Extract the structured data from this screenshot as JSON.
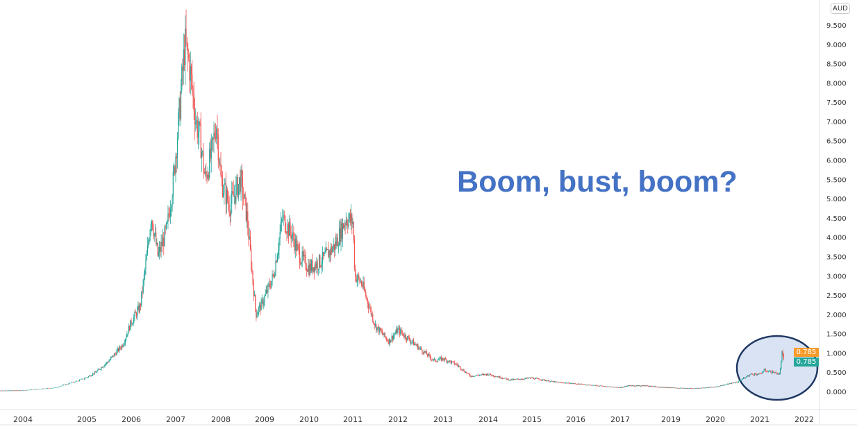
{
  "chart_data": {
    "type": "candlestick",
    "title": "",
    "annotation": "Boom, bust, boom?",
    "currency": "AUD",
    "y_ticks": [
      "0.000",
      "0.500",
      "1.000",
      "1.500",
      "2.000",
      "2.500",
      "3.000",
      "3.500",
      "4.000",
      "4.500",
      "5.000",
      "5.500",
      "6.000",
      "6.500",
      "7.000",
      "7.500",
      "8.000",
      "8.500",
      "9.000",
      "9.500"
    ],
    "ylim": [
      0,
      9.5
    ],
    "x_ticks": [
      "2004",
      "2005",
      "2006",
      "2007",
      "2008",
      "2009",
      "2010",
      "2011",
      "2012",
      "2013",
      "2014",
      "2015",
      "2016",
      "2017",
      "2019",
      "2020",
      "2021",
      "2022"
    ],
    "price_path": [
      [
        2003.0,
        0.02
      ],
      [
        2004.0,
        0.03
      ],
      [
        2004.5,
        0.1
      ],
      [
        2004.9,
        0.3
      ],
      [
        2005.2,
        0.5
      ],
      [
        2005.5,
        0.8
      ],
      [
        2005.8,
        1.2
      ],
      [
        2006.0,
        1.8
      ],
      [
        2006.2,
        2.2
      ],
      [
        2006.35,
        3.5
      ],
      [
        2006.45,
        4.6
      ],
      [
        2006.6,
        3.5
      ],
      [
        2006.8,
        4.2
      ],
      [
        2006.95,
        5.5
      ],
      [
        2007.1,
        7.5
      ],
      [
        2007.2,
        9.0
      ],
      [
        2007.3,
        8.5
      ],
      [
        2007.45,
        7.0
      ],
      [
        2007.55,
        6.5
      ],
      [
        2007.65,
        5.5
      ],
      [
        2007.8,
        6.2
      ],
      [
        2007.9,
        7.0
      ],
      [
        2008.0,
        5.5
      ],
      [
        2008.2,
        4.8
      ],
      [
        2008.45,
        5.5
      ],
      [
        2008.6,
        4.5
      ],
      [
        2008.8,
        2.0
      ],
      [
        2008.95,
        2.3
      ],
      [
        2009.2,
        3.0
      ],
      [
        2009.4,
        4.5
      ],
      [
        2009.6,
        4.1
      ],
      [
        2009.8,
        3.5
      ],
      [
        2010.0,
        3.2
      ],
      [
        2010.3,
        3.4
      ],
      [
        2010.6,
        3.8
      ],
      [
        2010.85,
        4.5
      ],
      [
        2011.0,
        4.4
      ],
      [
        2011.05,
        3.0
      ],
      [
        2011.2,
        2.8
      ],
      [
        2011.5,
        1.7
      ],
      [
        2011.8,
        1.3
      ],
      [
        2012.0,
        1.6
      ],
      [
        2012.2,
        1.4
      ],
      [
        2012.5,
        1.1
      ],
      [
        2012.8,
        0.8
      ],
      [
        2013.0,
        0.85
      ],
      [
        2013.3,
        0.7
      ],
      [
        2013.6,
        0.4
      ],
      [
        2014.0,
        0.45
      ],
      [
        2014.5,
        0.3
      ],
      [
        2015.0,
        0.35
      ],
      [
        2015.5,
        0.25
      ],
      [
        2016.0,
        0.2
      ],
      [
        2016.5,
        0.15
      ],
      [
        2017.0,
        0.1
      ],
      [
        2017.3,
        0.15
      ],
      [
        2018.0,
        0.15
      ],
      [
        2018.5,
        0.12
      ],
      [
        2019.0,
        0.1
      ],
      [
        2019.5,
        0.08
      ],
      [
        2020.0,
        0.12
      ],
      [
        2020.5,
        0.25
      ],
      [
        2020.8,
        0.45
      ],
      [
        2021.0,
        0.45
      ],
      [
        2021.1,
        0.55
      ],
      [
        2021.3,
        0.5
      ],
      [
        2021.45,
        0.45
      ],
      [
        2021.5,
        1.0
      ],
      [
        2021.55,
        0.75
      ]
    ],
    "last_price_labels": [
      {
        "text": "0.785",
        "color": "#f89b2b"
      },
      {
        "text": "0.785",
        "color": "#26a69a"
      }
    ],
    "up_color": "#26a69a",
    "down_color": "#ef5350",
    "highlight_ellipse": {
      "from": 2020.5,
      "to": 2022.0,
      "fill": "#dae3f3",
      "stroke": "#203864"
    }
  }
}
